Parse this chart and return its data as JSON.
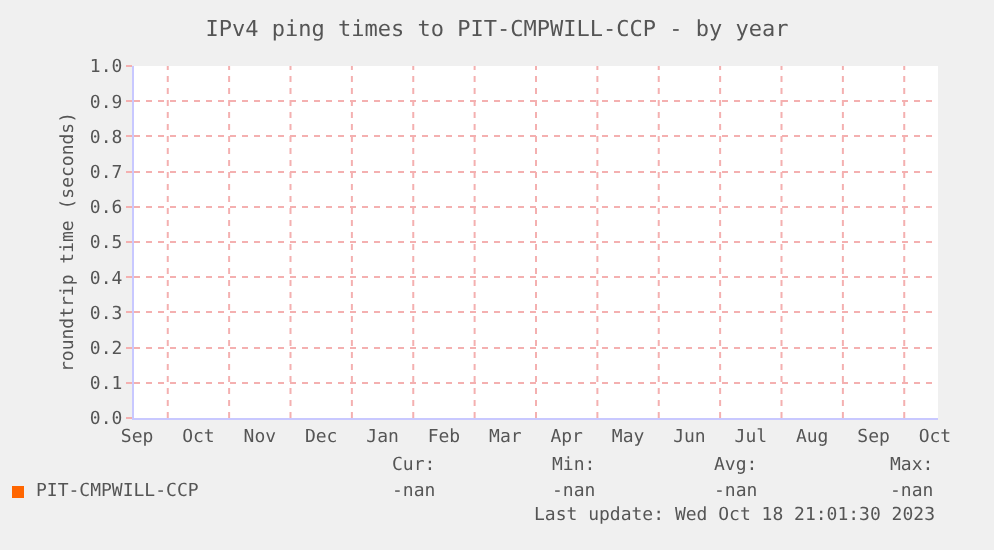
{
  "chart_data": {
    "type": "line",
    "title": "IPv4 ping times to PIT-CMPWILL-CCP - by year",
    "ylabel": "roundtrip time (seconds)",
    "categories": [
      "Sep",
      "Oct",
      "Nov",
      "Dec",
      "Jan",
      "Feb",
      "Mar",
      "Apr",
      "May",
      "Jun",
      "Jul",
      "Aug",
      "Sep",
      "Oct"
    ],
    "series": [
      {
        "name": "PIT-CMPWILL-CCP",
        "color": "#ff6600",
        "values": [
          null,
          null,
          null,
          null,
          null,
          null,
          null,
          null,
          null,
          null,
          null,
          null,
          null,
          null
        ]
      }
    ],
    "ylim": [
      0,
      1.0
    ],
    "yticks": [
      {
        "value": 0,
        "label": "0.0"
      },
      {
        "value": 0.1,
        "label": "0.1"
      },
      {
        "value": 0.2,
        "label": "0.2"
      },
      {
        "value": 0.3,
        "label": "0.3"
      },
      {
        "value": 0.4,
        "label": "0.4"
      },
      {
        "value": 0.5,
        "label": "0.5"
      },
      {
        "value": 0.6,
        "label": "0.6"
      },
      {
        "value": 0.7,
        "label": "0.7"
      },
      {
        "value": 0.8,
        "label": "0.8"
      },
      {
        "value": 0.9,
        "label": "0.9"
      },
      {
        "value": 1.0,
        "label": "1.0"
      }
    ],
    "grid": true,
    "annotations": [
      "Cur:",
      "Min:",
      "Avg:",
      "Max:",
      "-nan",
      "-nan",
      "-nan",
      "-nan",
      "Last update: Wed Oct 18 21:01:30 2023"
    ]
  }
}
